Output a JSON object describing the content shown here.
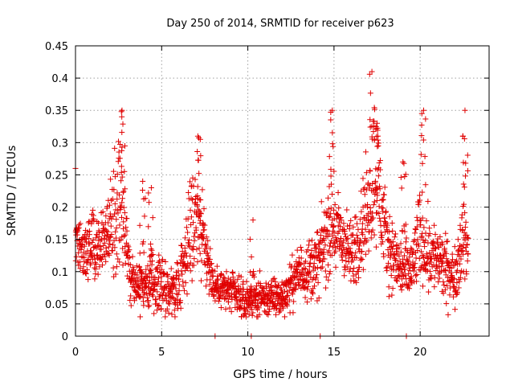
{
  "chart_data": {
    "type": "scatter",
    "title": "Day 250 of 2014, SRMTID for receiver p623",
    "xlabel": "GPS time / hours",
    "ylabel": "SRMTID / TECUs",
    "xlim": [
      0,
      24
    ],
    "ylim": [
      0,
      0.45
    ],
    "xticks": [
      0,
      5,
      10,
      15,
      20
    ],
    "yticks": [
      0,
      0.05,
      0.1,
      0.15,
      0.2,
      0.25,
      0.3,
      0.35,
      0.4,
      0.45
    ],
    "xtick_labels": [
      "0",
      "5",
      "10",
      "15",
      "20"
    ],
    "ytick_labels": [
      "0",
      "0.05",
      "0.1",
      "0.15",
      "0.2",
      "0.25",
      "0.3",
      "0.35",
      "0.4",
      "0.45"
    ],
    "grid": true,
    "marker": "+",
    "color": "#e00000",
    "series": [
      {
        "name": "SRMTID",
        "envelope_x": [
          0.0,
          0.5,
          1.0,
          1.5,
          2.0,
          2.5,
          2.8,
          3.2,
          4.0,
          5.0,
          5.8,
          6.3,
          7.0,
          7.5,
          8.0,
          9.0,
          9.8,
          10.2,
          11.0,
          12.0,
          13.0,
          14.0,
          14.8,
          15.5,
          16.0,
          16.5,
          17.0,
          17.4,
          18.0,
          18.5,
          19.0,
          19.5,
          20.0,
          20.5,
          21.0,
          21.5,
          22.0,
          22.5,
          22.8
        ],
        "envelope_y": [
          0.15,
          0.13,
          0.14,
          0.15,
          0.17,
          0.21,
          0.19,
          0.09,
          0.08,
          0.08,
          0.07,
          0.12,
          0.2,
          0.14,
          0.08,
          0.07,
          0.05,
          0.06,
          0.06,
          0.06,
          0.1,
          0.11,
          0.17,
          0.15,
          0.12,
          0.16,
          0.2,
          0.27,
          0.15,
          0.12,
          0.1,
          0.1,
          0.16,
          0.13,
          0.12,
          0.1,
          0.09,
          0.16,
          0.12
        ],
        "spread": [
          0.05,
          0.04,
          0.05,
          0.05,
          0.07,
          0.1,
          0.09,
          0.04,
          0.04,
          0.04,
          0.04,
          0.06,
          0.1,
          0.05,
          0.03,
          0.03,
          0.03,
          0.03,
          0.03,
          0.03,
          0.04,
          0.05,
          0.07,
          0.06,
          0.05,
          0.07,
          0.08,
          0.12,
          0.06,
          0.05,
          0.05,
          0.05,
          0.07,
          0.06,
          0.05,
          0.05,
          0.04,
          0.07,
          0.05
        ],
        "peaks": [
          [
            0.0,
            0.26
          ],
          [
            2.7,
            0.35
          ],
          [
            3.9,
            0.24
          ],
          [
            4.4,
            0.23
          ],
          [
            7.1,
            0.31
          ],
          [
            10.3,
            0.18
          ],
          [
            14.9,
            0.35
          ],
          [
            17.2,
            0.41
          ],
          [
            17.5,
            0.33
          ],
          [
            19.0,
            0.27
          ],
          [
            20.2,
            0.35
          ],
          [
            22.6,
            0.35
          ]
        ],
        "zero_points": [
          8.1,
          10.2,
          14.2,
          19.2
        ]
      }
    ]
  }
}
